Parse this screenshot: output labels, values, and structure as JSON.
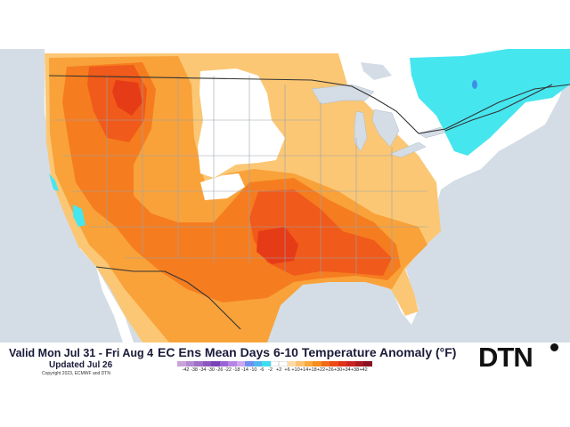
{
  "map": {
    "water_color": "#d4dde6",
    "land_color": "#ffffff",
    "border_color": "#333333",
    "state_line_color": "#9aa4ad"
  },
  "footer": {
    "valid_text": "Valid Mon Jul 31 - Fri Aug 4",
    "updated_text": "Updated Jul 26",
    "copyright_text": "Copyright 2023, ECMWF and DTN",
    "title": "EC Ens Mean Days 6-10 Temperature Anomaly (°F)",
    "logo_text": "DTN"
  },
  "scale": {
    "ticks": [
      "-42",
      "-38",
      "-34",
      "-30",
      "-26",
      "-22",
      "-18",
      "-14",
      "-10",
      "-6",
      "-2",
      "+2",
      "+6",
      "+10",
      "+14",
      "+18",
      "+22",
      "+26",
      "+30",
      "+34",
      "+38",
      "+42"
    ],
    "colors": [
      "#c9a3d9",
      "#b48ad0",
      "#a070c8",
      "#8c58c0",
      "#7a42b8",
      "#9b63d6",
      "#b684e6",
      "#cfa6f0",
      "#6f8ff0",
      "#4fb6f0",
      "#3fdcef",
      "#ffffff",
      "#ffffff",
      "#fdd9a6",
      "#fcc270",
      "#f9a83e",
      "#f68d1f",
      "#f26a16",
      "#ec4b14",
      "#e0311a",
      "#c9241f",
      "#a81a1f",
      "#8a1220"
    ]
  },
  "anomaly_colors": {
    "light": "#fbc774",
    "orange": "#f9a23a",
    "dark_orange": "#f57d20",
    "red_orange": "#f05a1a",
    "red": "#e63b17",
    "cyan": "#46e6ef",
    "blue": "#3f8ee8"
  }
}
